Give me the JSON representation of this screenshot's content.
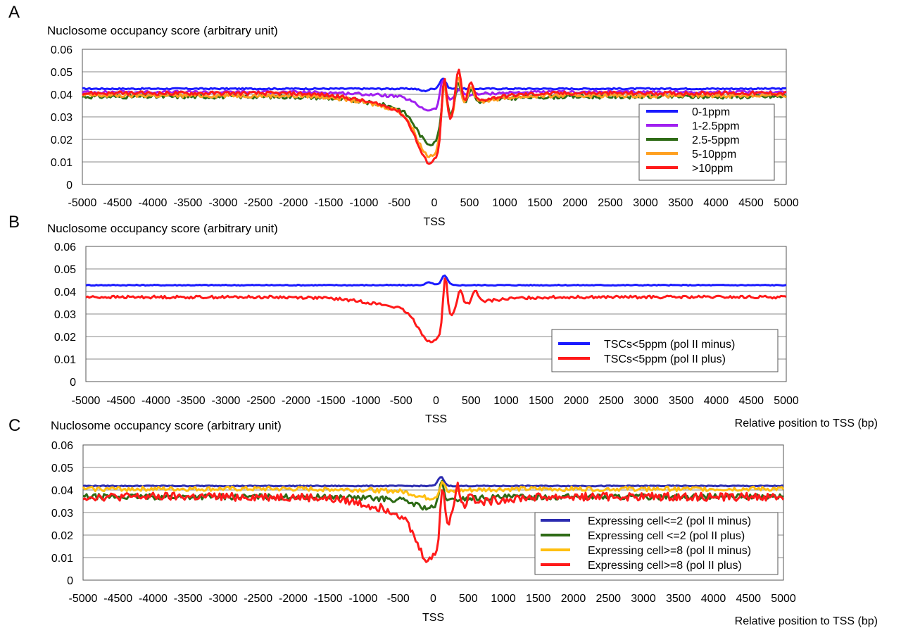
{
  "chart_data": [
    {
      "panel_label": "A",
      "type": "line",
      "ylabel": "Nuclosome occupancy score (arbitrary unit)",
      "xlabel": "",
      "tss_label": "TSS",
      "ylim": [
        0,
        0.06
      ],
      "yticks": [
        "0",
        "0.01",
        "0.02",
        "0.03",
        "0.04",
        "0.05",
        "0.06"
      ],
      "xlim": [
        -5000,
        5000
      ],
      "xticks": [
        "-5000",
        "-4500",
        "-4000",
        "-3500",
        "-3000",
        "-2500",
        "-2000",
        "-1500",
        "-1000",
        "-500",
        "0",
        "500",
        "1000",
        "1500",
        "2000",
        "2500",
        "3000",
        "3500",
        "4000",
        "4500",
        "5000"
      ],
      "grid": "horizontal",
      "legend_position": "right",
      "series": [
        {
          "name": "0-1ppm",
          "color": "#1a1aff",
          "base": 0.0425,
          "dip": 0.0,
          "peaks": [
            [
              120,
              0.0045,
              60
            ],
            [
              -150,
              -0.001,
              80
            ]
          ],
          "noise": 0.0003
        },
        {
          "name": "1-2.5ppm",
          "color": "#a020f0",
          "base": 0.041,
          "dip": 0.008,
          "peaks": [
            [
              120,
              0.011,
              50
            ],
            [
              350,
              0.003,
              60
            ]
          ],
          "noise": 0.0006
        },
        {
          "name": "2.5-5ppm",
          "color": "#2e6b16",
          "base": 0.039,
          "dip": 0.021,
          "peaks": [
            [
              140,
              0.018,
              50
            ],
            [
              340,
              0.012,
              55
            ],
            [
              520,
              0.006,
              60
            ]
          ],
          "noise": 0.0009
        },
        {
          "name": "5-10ppm",
          "color": "#ffa020",
          "base": 0.0395,
          "dip": 0.027,
          "peaks": [
            [
              140,
              0.022,
              50
            ],
            [
              340,
              0.015,
              55
            ],
            [
              520,
              0.008,
              60
            ]
          ],
          "noise": 0.0009
        },
        {
          "name": ">10ppm",
          "color": "#ff1a1a",
          "base": 0.0405,
          "dip": 0.031,
          "peaks": [
            [
              140,
              0.026,
              50
            ],
            [
              340,
              0.018,
              55
            ],
            [
              520,
              0.009,
              60
            ]
          ],
          "noise": 0.0008
        }
      ]
    },
    {
      "panel_label": "B",
      "type": "line",
      "ylabel": "Nuclosome occupancy score (arbitrary unit)",
      "xlabel": "Relative position to TSS (bp)",
      "tss_label": "TSS",
      "ylim": [
        0,
        0.06
      ],
      "yticks": [
        "0",
        "0.01",
        "0.02",
        "0.03",
        "0.04",
        "0.05",
        "0.06"
      ],
      "xlim": [
        -5000,
        5000
      ],
      "xticks": [
        "-5000",
        "-4500",
        "-4000",
        "-3500",
        "-3000",
        "-2500",
        "-2000",
        "-1500",
        "-1000",
        "-500",
        "0",
        "500",
        "1000",
        "1500",
        "2000",
        "2500",
        "3000",
        "3500",
        "4000",
        "4500",
        "5000"
      ],
      "grid": "horizontal",
      "legend_position": "lower-right",
      "series": [
        {
          "name": "TSCs<5ppm (pol II minus)",
          "color": "#1a1aff",
          "base": 0.0428,
          "dip": 0.0,
          "peaks": [
            [
              120,
              0.0042,
              60
            ],
            [
              -100,
              0.0012,
              70
            ]
          ],
          "noise": 0.0002
        },
        {
          "name": "TSCs<5ppm (pol II plus)",
          "color": "#ff1a1a",
          "base": 0.0375,
          "dip": 0.02,
          "peaks": [
            [
              130,
              0.022,
              45
            ],
            [
              340,
              0.008,
              55
            ],
            [
              560,
              0.005,
              60
            ]
          ],
          "noise": 0.0006
        }
      ]
    },
    {
      "panel_label": "C",
      "type": "line",
      "ylabel": "Nuclosome occupancy score (arbitrary unit)",
      "xlabel": "Relative position to TSS (bp)",
      "tss_label": "TSS",
      "ylim": [
        0,
        0.06
      ],
      "yticks": [
        "0",
        "0.01",
        "0.02",
        "0.03",
        "0.04",
        "0.05",
        "0.06"
      ],
      "xlim": [
        -5000,
        5000
      ],
      "xticks": [
        "-5000",
        "-4500",
        "-4000",
        "-3500",
        "-3000",
        "-2500",
        "-2000",
        "-1500",
        "-1000",
        "-500",
        "0",
        "500",
        "1000",
        "1500",
        "2000",
        "2500",
        "3000",
        "3500",
        "4000",
        "4500",
        "5000"
      ],
      "grid": "horizontal",
      "legend_position": "lower-right",
      "series": [
        {
          "name": "Expressing cell<=2 (pol II minus)",
          "color": "#2b2bb0",
          "base": 0.0418,
          "dip": 0.0,
          "peaks": [
            [
              110,
              0.004,
              60
            ]
          ],
          "noise": 0.0002
        },
        {
          "name": "Expressing cell <=2 (pol II plus)",
          "color": "#2e6b16",
          "base": 0.037,
          "dip": 0.005,
          "peaks": [
            [
              120,
              0.01,
              50
            ]
          ],
          "noise": 0.0012
        },
        {
          "name": "Expressing cell>=8 (pol II minus)",
          "color": "#ffbf10",
          "base": 0.0405,
          "dip": 0.004,
          "peaks": [
            [
              130,
              0.006,
              50
            ]
          ],
          "noise": 0.001
        },
        {
          "name": "Expressing cell>=8 (pol II plus)",
          "color": "#ff1a1a",
          "base": 0.037,
          "dip": 0.028,
          "peaks": [
            [
              130,
              0.023,
              45
            ],
            [
              340,
              0.012,
              55
            ],
            [
              540,
              0.006,
              60
            ]
          ],
          "noise": 0.0018
        }
      ]
    }
  ]
}
